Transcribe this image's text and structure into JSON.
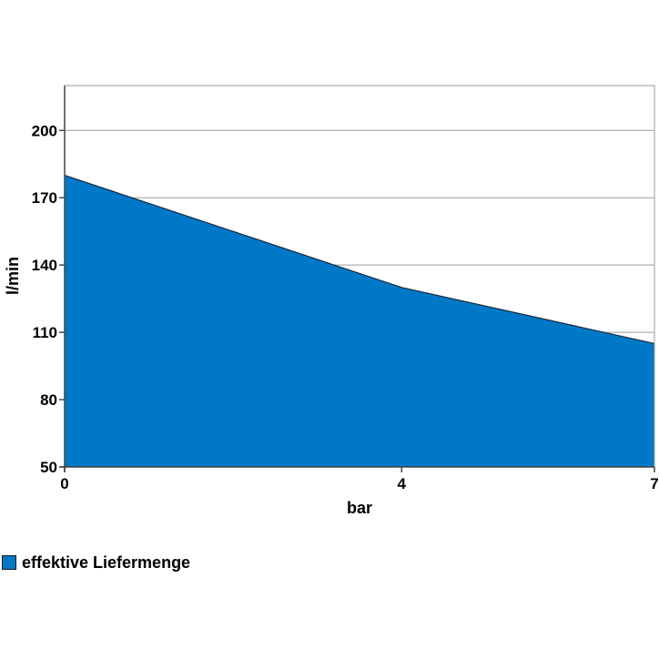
{
  "chart_data": {
    "type": "area",
    "x": [
      0,
      4,
      7
    ],
    "series": [
      {
        "name": "effektive Liefermenge",
        "values": [
          180,
          130,
          105
        ],
        "color": "#0078c8"
      }
    ],
    "xlabel": "bar",
    "ylabel": "l/min",
    "xlim": [
      0,
      7
    ],
    "ylim": [
      50,
      220
    ],
    "xticks": [
      0,
      4,
      7
    ],
    "yticks": [
      50,
      80,
      110,
      140,
      170,
      200
    ],
    "grid": true,
    "legend": "bottom-left",
    "colors": {
      "fill": "#0078c8",
      "line": "#1a2a3a",
      "grid": "#9a9a9a",
      "axis": "#444444"
    }
  }
}
